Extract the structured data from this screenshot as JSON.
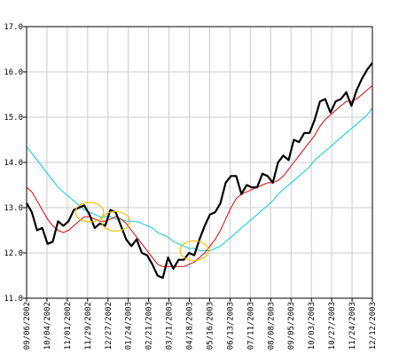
{
  "chart_data": {
    "type": "line",
    "title": "",
    "xlabel": "",
    "ylabel": "",
    "ylim": [
      11.0,
      17.0
    ],
    "y_ticks": [
      "11.0",
      "12.0",
      "13.0",
      "14.0",
      "15.0",
      "16.0",
      "17.0"
    ],
    "x_ticks": [
      "09/06/2002",
      "10/04/2002",
      "11/01/2002",
      "11/29/2002",
      "12/27/2002",
      "01/24/2003",
      "02/21/2003",
      "03/21/2003",
      "04/18/2003",
      "05/16/2003",
      "06/13/2003",
      "07/11/2003",
      "08/08/2003",
      "09/05/2003",
      "10/03/2003",
      "10/27/2003",
      "11/24/2003",
      "12/12/2003"
    ],
    "grid": true,
    "colors": {
      "series_main": "#000000",
      "series_short_ma": "#dd0000",
      "series_long_ma": "#00ccdd",
      "highlight": "#f0c000",
      "grid": "#cccccc"
    },
    "series": [
      {
        "values": [
          13.1,
          12.9,
          12.5,
          12.55,
          12.2,
          12.25,
          12.7,
          12.6,
          12.7,
          12.95,
          13.0,
          13.05,
          12.85,
          12.55,
          12.65,
          12.6,
          12.95,
          12.9,
          12.6,
          12.3,
          12.15,
          12.3,
          12.0,
          11.95,
          11.75,
          11.5,
          11.45,
          11.9,
          11.65,
          11.85,
          11.85,
          12.0,
          11.95,
          12.3,
          12.6,
          12.85,
          12.9,
          13.1,
          13.55,
          13.7,
          13.7,
          13.3,
          13.5,
          13.45,
          13.45,
          13.75,
          13.7,
          13.55,
          14.0,
          14.15,
          14.05,
          14.5,
          14.45,
          14.65,
          14.65,
          14.95,
          15.35,
          15.4,
          15.1,
          15.35,
          15.4,
          15.55,
          15.25,
          15.6,
          15.85,
          16.05,
          16.2
        ]
      },
      {
        "values": [
          13.45,
          13.35,
          13.15,
          12.95,
          12.75,
          12.6,
          12.5,
          12.45,
          12.5,
          12.6,
          12.7,
          12.8,
          12.8,
          12.75,
          12.7,
          12.7,
          12.75,
          12.8,
          12.75,
          12.65,
          12.5,
          12.35,
          12.2,
          12.05,
          11.9,
          11.75,
          11.7,
          11.7,
          11.7,
          11.7,
          11.7,
          11.75,
          11.8,
          11.9,
          12.0,
          12.15,
          12.3,
          12.5,
          12.75,
          13.0,
          13.2,
          13.3,
          13.35,
          13.4,
          13.45,
          13.5,
          13.55,
          13.55,
          13.6,
          13.7,
          13.85,
          14.0,
          14.15,
          14.3,
          14.45,
          14.6,
          14.8,
          14.95,
          15.05,
          15.15,
          15.25,
          15.35,
          15.35,
          15.4,
          15.5,
          15.6,
          15.7
        ]
      },
      {
        "values": [
          14.35,
          14.2,
          14.05,
          13.9,
          13.75,
          13.6,
          13.45,
          13.35,
          13.25,
          13.15,
          13.05,
          12.95,
          12.9,
          12.85,
          12.8,
          12.8,
          12.8,
          12.75,
          12.75,
          12.7,
          12.7,
          12.7,
          12.65,
          12.6,
          12.55,
          12.45,
          12.4,
          12.35,
          12.25,
          12.2,
          12.15,
          12.1,
          12.1,
          12.05,
          12.05,
          12.05,
          12.1,
          12.15,
          12.25,
          12.35,
          12.45,
          12.55,
          12.65,
          12.75,
          12.85,
          12.95,
          13.05,
          13.15,
          13.3,
          13.4,
          13.5,
          13.6,
          13.7,
          13.8,
          13.9,
          14.05,
          14.15,
          14.25,
          14.35,
          14.45,
          14.55,
          14.65,
          14.75,
          14.85,
          14.95,
          15.05,
          15.2
        ]
      }
    ],
    "highlights": [
      {
        "x_index": 12,
        "y": 12.9
      },
      {
        "x_index": 17,
        "y": 12.7
      },
      {
        "x_index": 32,
        "y": 12.05
      }
    ]
  }
}
